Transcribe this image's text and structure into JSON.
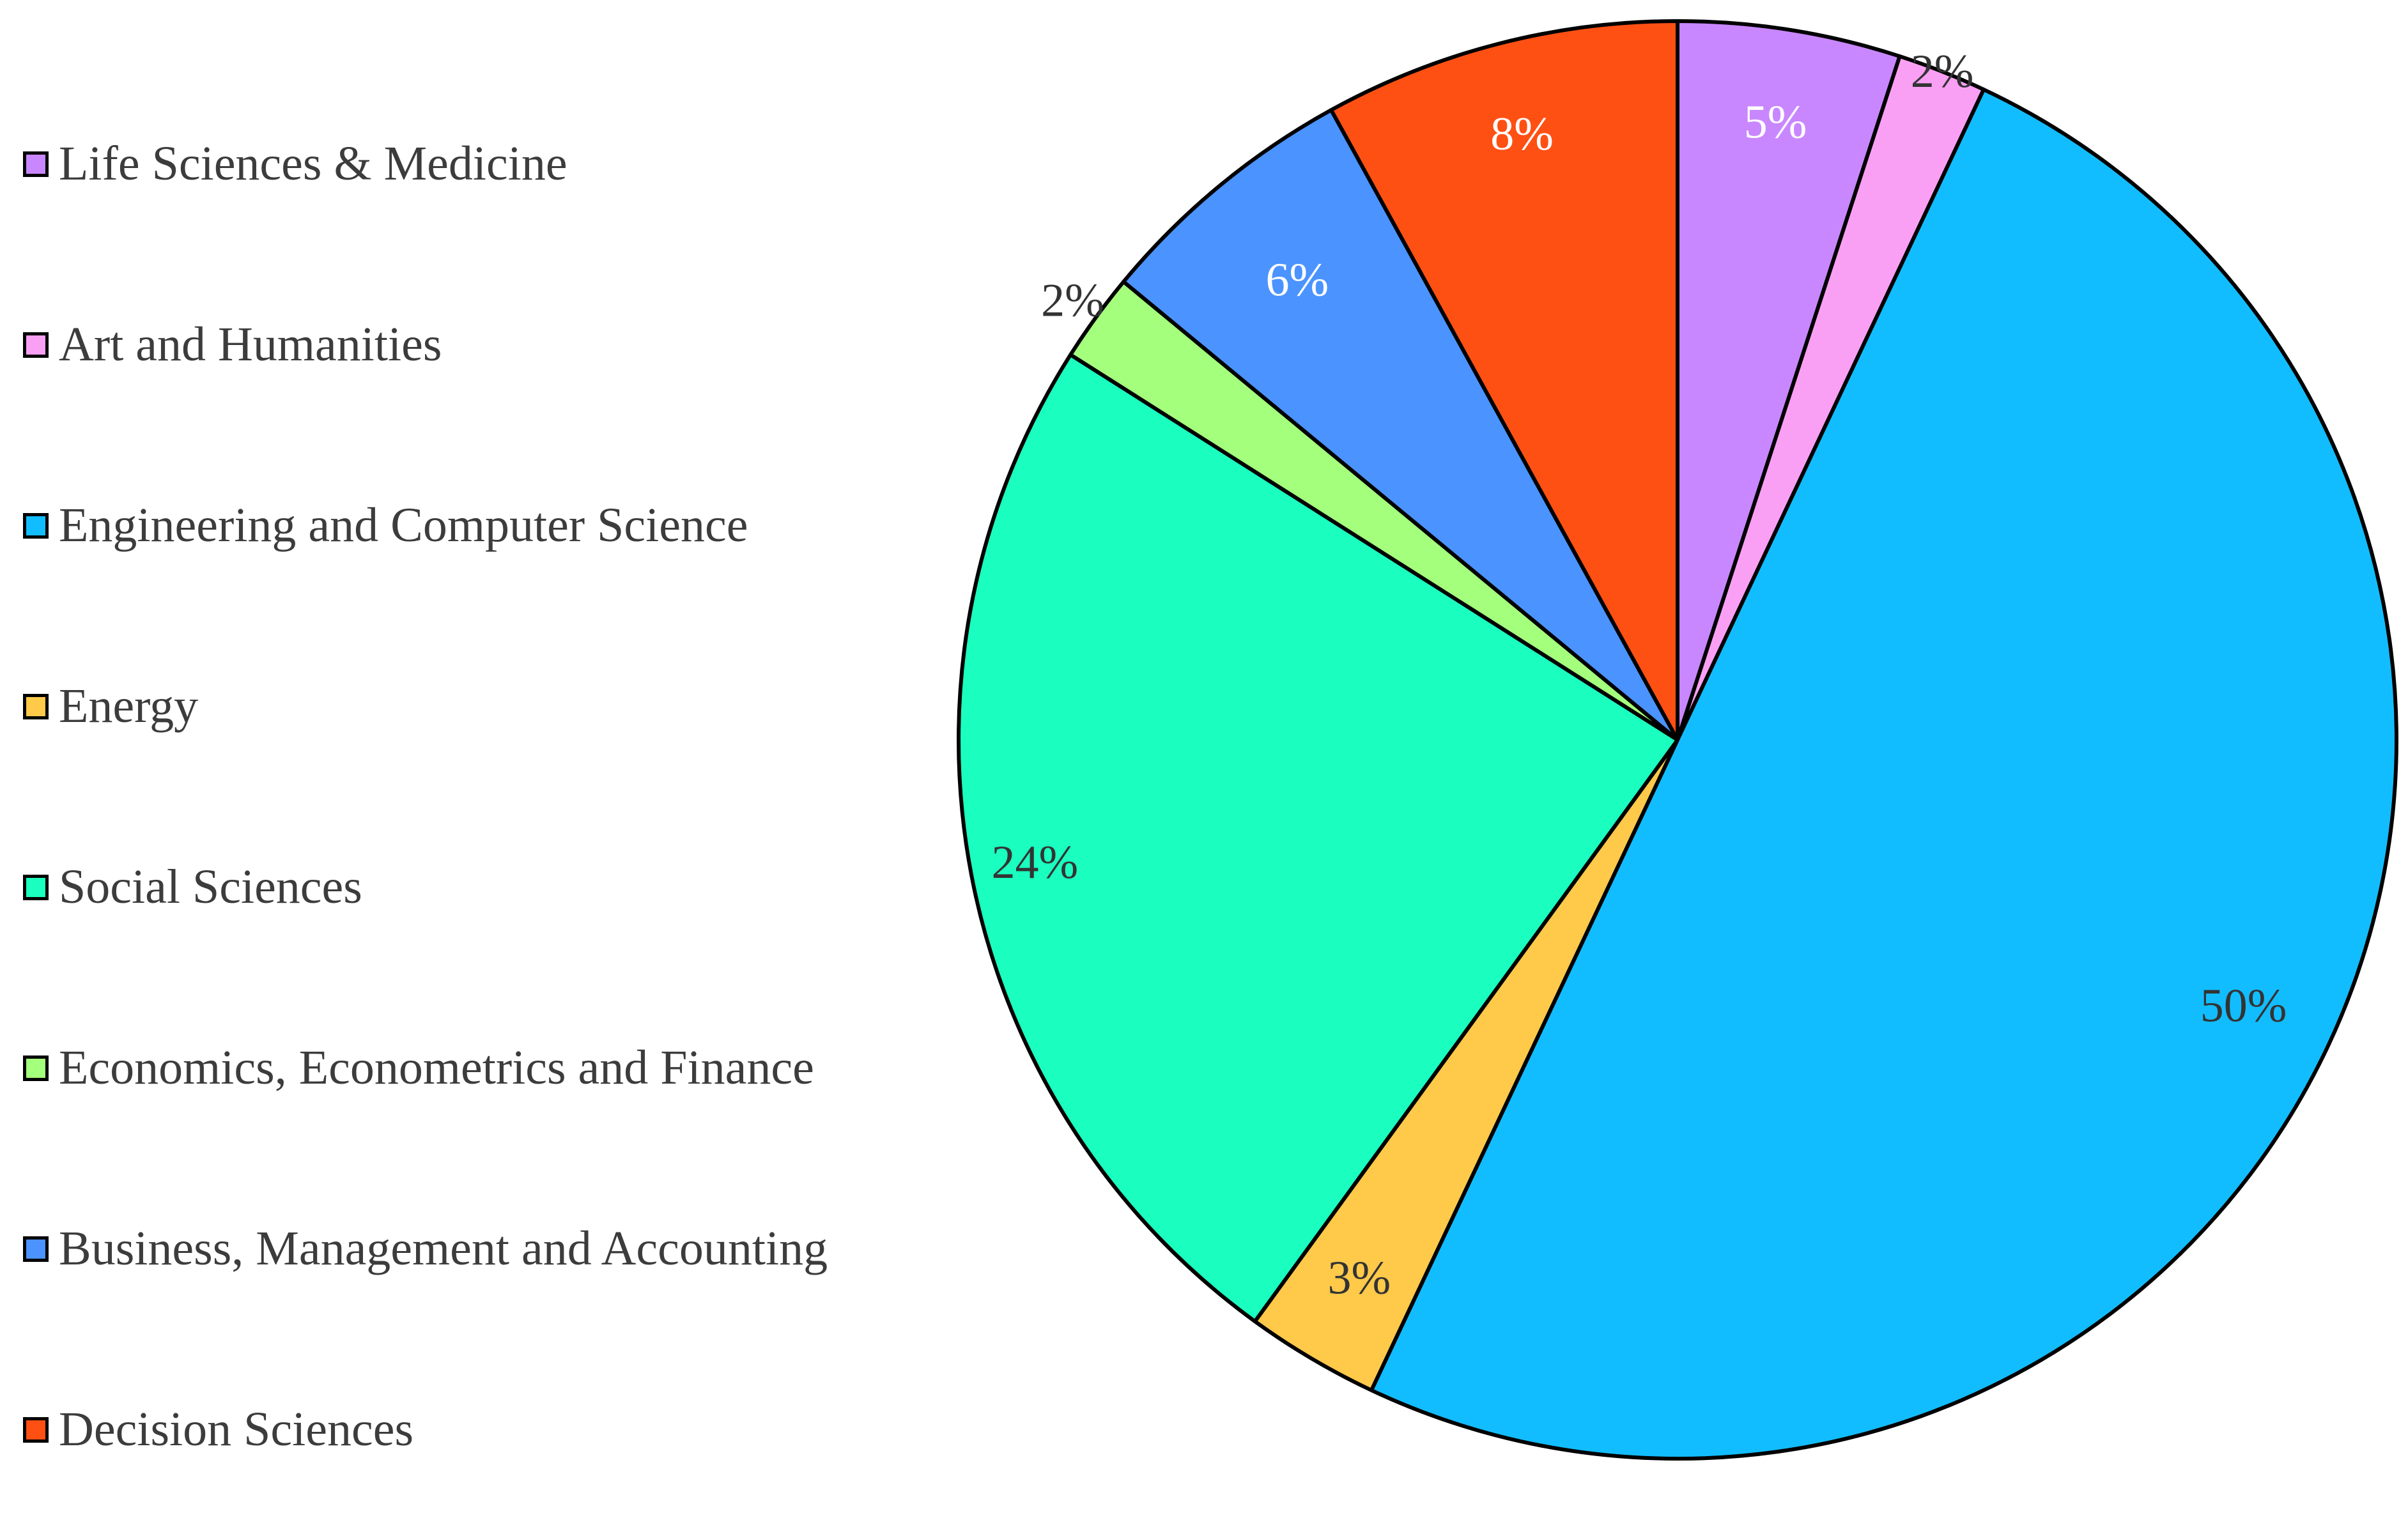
{
  "chart_data": {
    "type": "pie",
    "title": "",
    "slices": [
      {
        "label": "Life Sciences & Medicine",
        "value": 5,
        "value_label": "5%",
        "color": "#c987ff",
        "label_color": "#ffffff"
      },
      {
        "label": "Art and Humanities",
        "value": 2,
        "value_label": "2%",
        "color": "#f9a0f4",
        "label_color": "#333333"
      },
      {
        "label": "Engineering and Computer Science",
        "value": 50,
        "value_label": "50%",
        "color": "#12bdff",
        "label_color": "#333333"
      },
      {
        "label": "Energy",
        "value": 3,
        "value_label": "3%",
        "color": "#ffc94a",
        "label_color": "#333333"
      },
      {
        "label": "Social Sciences",
        "value": 24,
        "value_label": "24%",
        "color": "#1affbf",
        "label_color": "#333333"
      },
      {
        "label": "Economics, Econometrics and Finance",
        "value": 2,
        "value_label": "2%",
        "color": "#a4ff7c",
        "label_color": "#333333"
      },
      {
        "label": "Business, Management and Accounting",
        "value": 6,
        "value_label": "6%",
        "color": "#4b93ff",
        "label_color": "#ffffff"
      },
      {
        "label": "Decision Sciences",
        "value": 8,
        "value_label": "8%",
        "color": "#ff5014",
        "label_color": "#ffffff"
      }
    ],
    "legend_position": "left",
    "start_angle": "12 o'clock",
    "direction": "clockwise"
  }
}
